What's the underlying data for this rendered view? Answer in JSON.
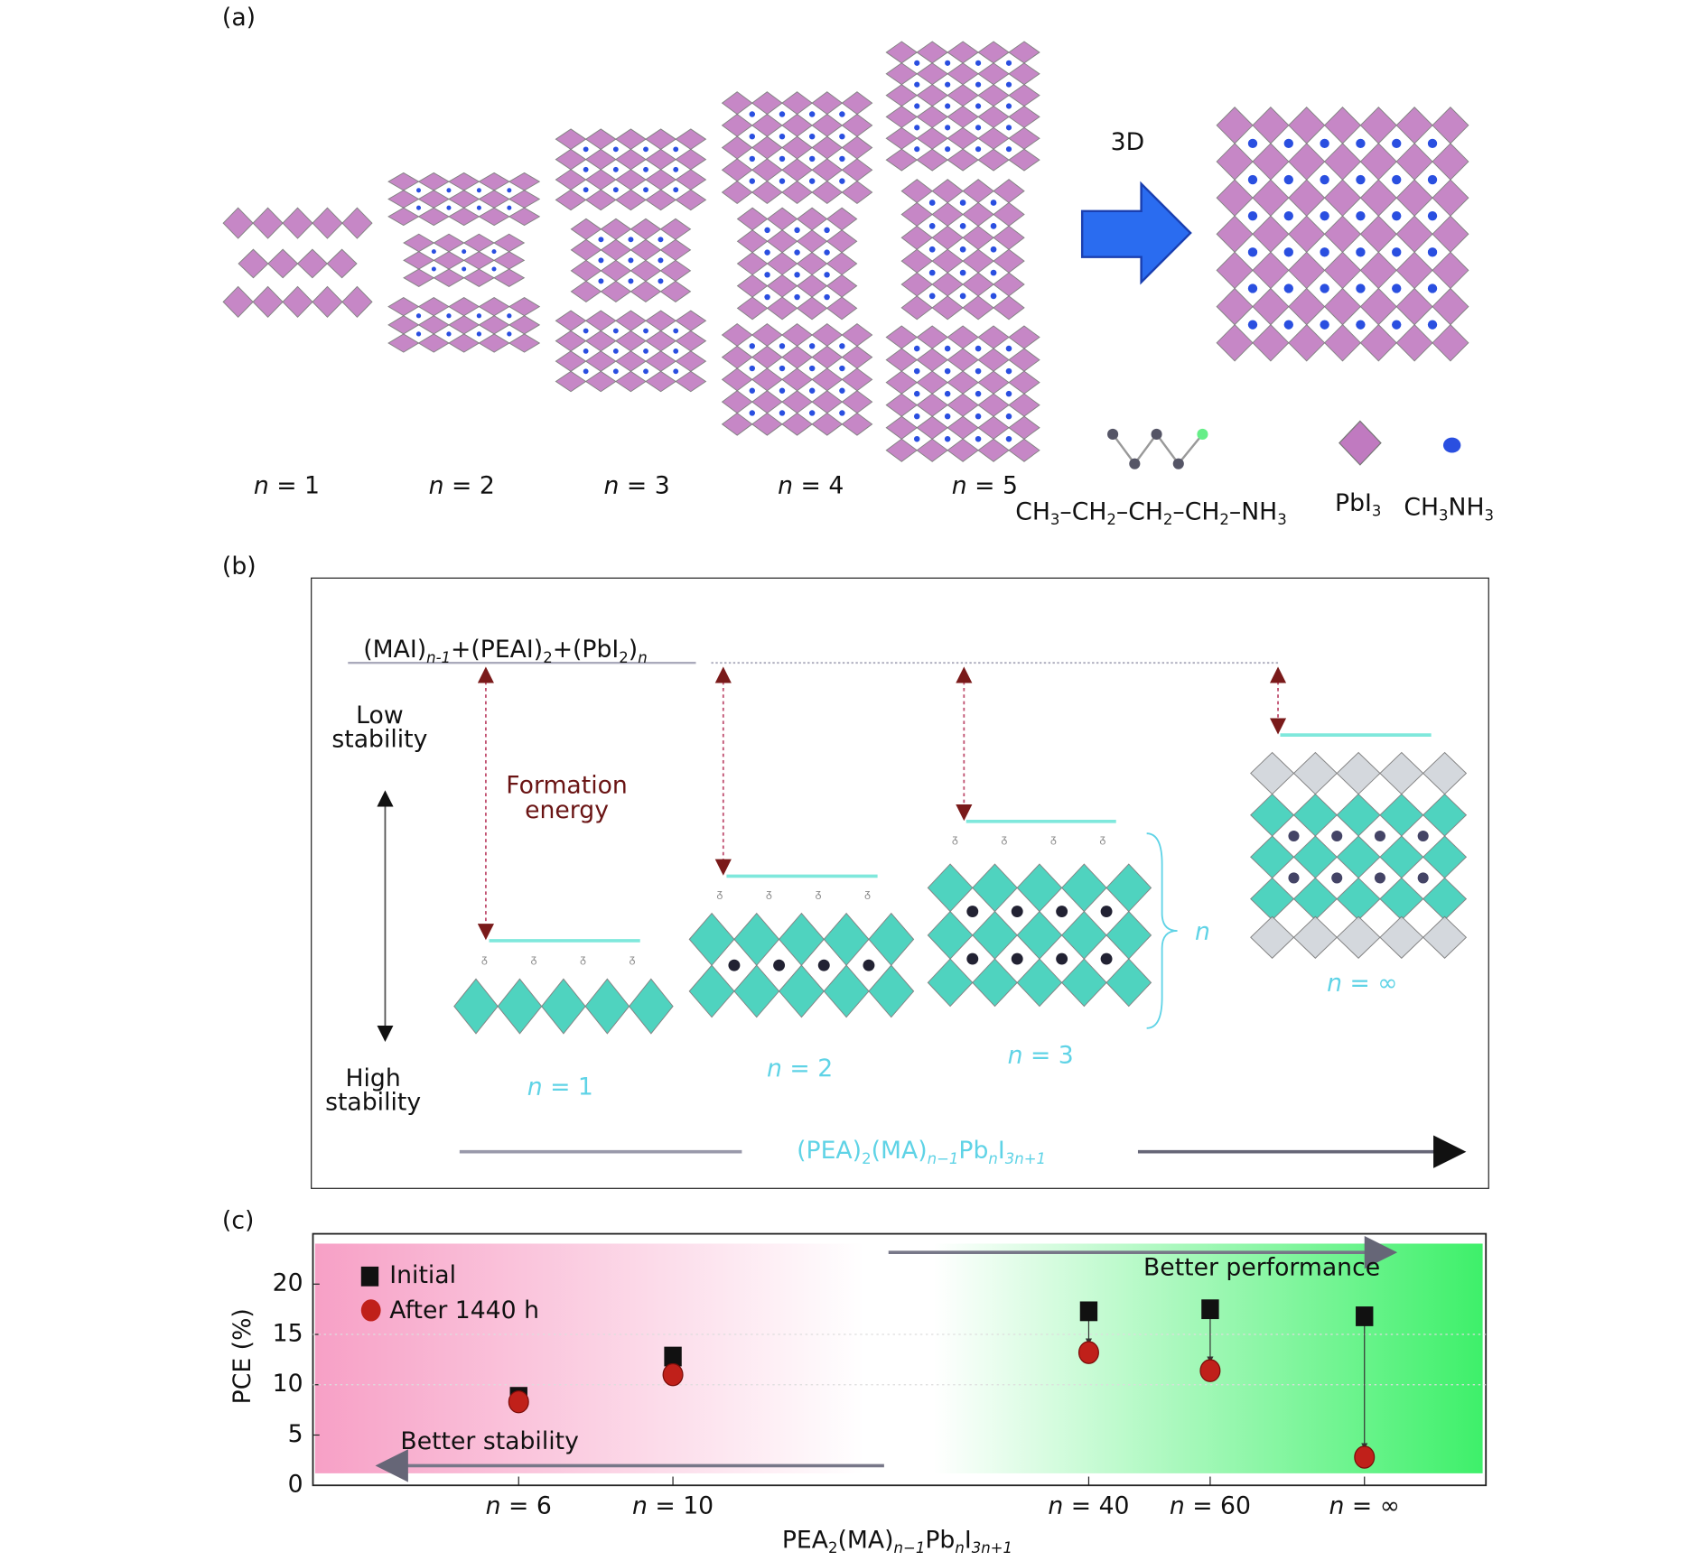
{
  "panel_labels": {
    "a": "(a)",
    "b": "(b)",
    "c": "(c)"
  },
  "panel_a": {
    "structures": [
      {
        "label_n": "n",
        "label_eq": " = 1",
        "layers": 1
      },
      {
        "label_n": "n",
        "label_eq": " = 2",
        "layers": 2
      },
      {
        "label_n": "n",
        "label_eq": " = 3",
        "layers": 3
      },
      {
        "label_n": "n",
        "label_eq": " = 4",
        "layers": 4
      },
      {
        "label_n": "n",
        "label_eq": " = 5",
        "layers": 5
      }
    ],
    "arrow_label": "3D",
    "legend": {
      "chain_formula": [
        [
          "CH",
          ""
        ],
        [
          "3",
          "sub"
        ],
        [
          "–CH",
          ""
        ],
        [
          "2",
          "sub"
        ],
        [
          "–CH",
          ""
        ],
        [
          "2",
          "sub"
        ],
        [
          "–CH",
          ""
        ],
        [
          "2",
          "sub"
        ],
        [
          "–NH",
          ""
        ],
        [
          "3",
          "sub"
        ]
      ],
      "octahedron_formula": [
        [
          "PbI",
          ""
        ],
        [
          "3",
          "sub"
        ]
      ],
      "cation_formula": [
        [
          "CH",
          ""
        ],
        [
          "3",
          "sub"
        ],
        [
          "NH",
          ""
        ],
        [
          "3",
          "sub"
        ]
      ]
    },
    "colors": {
      "octahedron": "#c07ac0",
      "cation": "#2a4fe0",
      "arrow": "#2a6cf0"
    }
  },
  "panel_b": {
    "reactants_formula": [
      [
        "(MAI)",
        ""
      ],
      [
        "n-1",
        "subi"
      ],
      [
        "+(PEAI)",
        ""
      ],
      [
        "2",
        "sub"
      ],
      [
        "+(PbI",
        ""
      ],
      [
        "2",
        "sub"
      ],
      [
        ")",
        ""
      ],
      [
        "n",
        "subi"
      ]
    ],
    "low_stability": [
      "Low",
      "stability"
    ],
    "high_stability": [
      "High",
      "stability"
    ],
    "formation_energy": [
      "Formation",
      "energy"
    ],
    "structure_labels": [
      {
        "n": "n",
        "eq": " = 1"
      },
      {
        "n": "n",
        "eq": " = 2"
      },
      {
        "n": "n",
        "eq": " = 3"
      },
      {
        "n": "n",
        "eq": " = ∞"
      }
    ],
    "brace_label": "n",
    "series_formula": [
      [
        "(PEA)",
        ""
      ],
      [
        "2",
        "sub"
      ],
      [
        "(MA)",
        ""
      ],
      [
        "n−1",
        "subi"
      ],
      [
        "Pb",
        ""
      ],
      [
        "n",
        "subi"
      ],
      [
        "I",
        ""
      ],
      [
        "3n+1",
        "subi"
      ]
    ],
    "colors": {
      "level": "#7fe8dc",
      "octahedron": "#3ccfb8",
      "arrow": "#7a1a1a",
      "label": "#5fd3e6"
    }
  },
  "chart_data": {
    "type": "scatter",
    "title": "",
    "xlabel_formula": [
      [
        "PEA",
        ""
      ],
      [
        "2",
        "sub"
      ],
      [
        "(MA)",
        ""
      ],
      [
        "n−1",
        "subi"
      ],
      [
        "Pb",
        ""
      ],
      [
        "n",
        "subi"
      ],
      [
        "I",
        ""
      ],
      [
        "3n+1",
        "subi"
      ]
    ],
    "ylabel": "PCE (%)",
    "ylim": [
      0,
      25
    ],
    "yticks": [
      0,
      5,
      10,
      15,
      20
    ],
    "categories": [
      "n = 6",
      "n = 10",
      "n = 40",
      "n = 60",
      "n = ∞"
    ],
    "series": [
      {
        "name": "Initial",
        "marker": "square",
        "color": "#111111",
        "values": [
          8.8,
          12.8,
          17.3,
          17.5,
          16.8
        ]
      },
      {
        "name": "After 1440 h",
        "marker": "circle",
        "color": "#c0201a",
        "values": [
          8.3,
          11.0,
          13.2,
          11.4,
          2.8
        ]
      }
    ],
    "legend_position": "top-left",
    "grid": true,
    "annotations": {
      "performance": "Better performance",
      "stability": "Better stability"
    },
    "background_colors": {
      "left": "#f7a0c6",
      "right": "#3ef06a"
    }
  }
}
